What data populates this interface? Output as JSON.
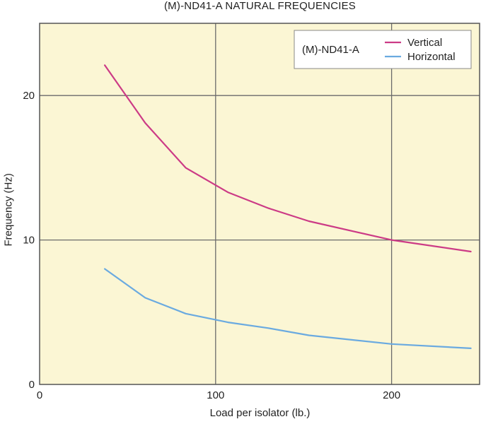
{
  "chart_data": {
    "type": "line",
    "title": "(M)-ND41-A NATURAL FREQUENCIES",
    "xlabel": "Load per isolator (lb.)",
    "ylabel": "Frequency (Hz)",
    "xlim": [
      0,
      250
    ],
    "ylim": [
      0,
      25
    ],
    "xticks": [
      0,
      100,
      200
    ],
    "yticks": [
      0,
      10,
      20
    ],
    "grid": true,
    "legend_title": "(M)-ND41-A",
    "legend_position": "top-right",
    "background": "#fbf6d4",
    "series": [
      {
        "name": "Vertical",
        "color": "#cc3b86",
        "x": [
          37,
          60,
          83,
          107,
          130,
          153,
          200,
          245
        ],
        "y": [
          22.1,
          18.1,
          15.0,
          13.3,
          12.2,
          11.3,
          10.0,
          9.2
        ]
      },
      {
        "name": "Horizontal",
        "color": "#6aaae0",
        "x": [
          37,
          60,
          83,
          107,
          130,
          153,
          200,
          245
        ],
        "y": [
          8.0,
          6.0,
          4.9,
          4.3,
          3.9,
          3.4,
          2.8,
          2.5
        ]
      }
    ]
  }
}
